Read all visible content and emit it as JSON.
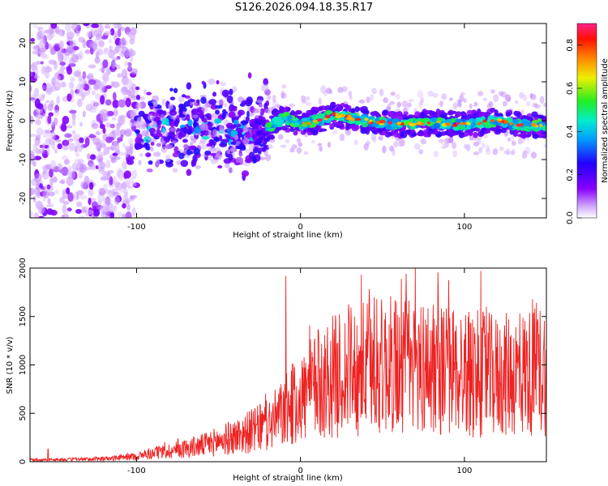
{
  "title": "S126.2026.094.18.35.R17",
  "chart_data": [
    {
      "type": "heatmap",
      "name": "spectrogram",
      "xlabel": "Height of straight line (km)",
      "ylabel": "Frequency (Hz)",
      "xlim": [
        -165,
        150
      ],
      "ylim": [
        -25,
        25
      ],
      "x_ticks": [
        -100,
        0,
        100
      ],
      "y_ticks": [
        -20,
        -10,
        0,
        10,
        20
      ],
      "colorbar": {
        "label": "Normalized spectral amplitude",
        "range": [
          0,
          0.9
        ],
        "ticks": [
          0.0,
          0.2,
          0.4,
          0.6,
          0.8
        ],
        "colors": [
          "#ffffff",
          "#8800ff",
          "#2200ff",
          "#00aaff",
          "#00ffaa",
          "#44ff00",
          "#ffff00",
          "#ff8800",
          "#ff0000",
          "#ff2288"
        ]
      },
      "signal_track": {
        "description_x": [
          -30,
          -20,
          -10,
          0,
          10,
          20,
          40,
          60,
          80,
          100,
          120,
          140,
          150
        ],
        "frequency": [
          -3,
          -2,
          1,
          -1,
          0,
          1.5,
          0,
          -1,
          -0.5,
          -1,
          0,
          -1.5,
          -1
        ]
      }
    },
    {
      "type": "line",
      "name": "snr",
      "xlabel": "Height of straight line (km)",
      "ylabel": "SNR (10 * v/v)",
      "xlim": [
        -165,
        150
      ],
      "ylim": [
        0,
        2000
      ],
      "x_ticks": [
        -100,
        0,
        100
      ],
      "y_ticks": [
        0,
        500,
        1000,
        1500,
        2000
      ],
      "line_color": "#ee2222",
      "envelope": {
        "x": [
          -165,
          -140,
          -120,
          -100,
          -80,
          -60,
          -40,
          -20,
          -10,
          0,
          10,
          20,
          30,
          40,
          60,
          80,
          100,
          120,
          140,
          150
        ],
        "typical": [
          20,
          25,
          30,
          60,
          120,
          180,
          280,
          400,
          550,
          700,
          850,
          950,
          1000,
          1050,
          1080,
          1050,
          1000,
          950,
          1000,
          1050
        ]
      },
      "spikes": [
        {
          "x": -154,
          "y": 130
        },
        {
          "x": -9,
          "y": 1920
        },
        {
          "x": 70,
          "y": 2000
        },
        {
          "x": 110,
          "y": 1970
        },
        {
          "x": 45,
          "y": 1700
        }
      ]
    }
  ]
}
